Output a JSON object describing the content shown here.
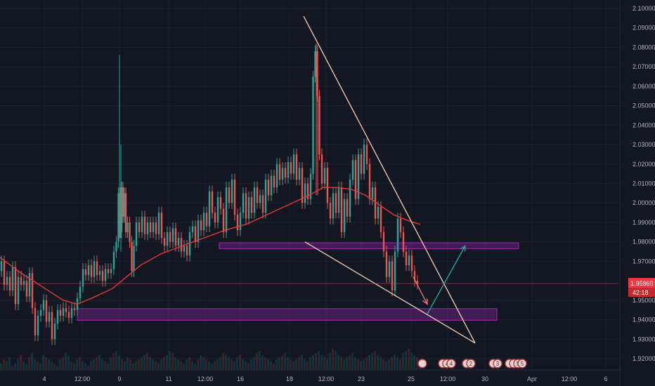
{
  "chart_data": {
    "type": "candlestick",
    "title": "",
    "xlabel": "",
    "ylabel": "",
    "ylim": [
      1.915,
      2.105
    ],
    "grid": true,
    "x_ticks": [
      "4",
      "12:00",
      "9",
      "11",
      "12:00",
      "16",
      "18",
      "12:00",
      "23",
      "25",
      "12:00",
      "30",
      "Apr",
      "12:00",
      "6"
    ],
    "y_ticks": [
      "2.10000",
      "2.09000",
      "2.08000",
      "2.07000",
      "2.06000",
      "2.05000",
      "2.04000",
      "2.03000",
      "2.02000",
      "2.01000",
      "2.00000",
      "1.99000",
      "1.98000",
      "1.97000",
      "1.95000",
      "1.94000",
      "1.93000",
      "1.92000"
    ],
    "last_price": {
      "value": "1.95860",
      "countdown": "42:18"
    },
    "series": [
      {
        "kind": "price",
        "points": [
          [
            0,
            1.965
          ],
          [
            4,
            1.97
          ],
          [
            8,
            1.958
          ],
          [
            12,
            1.962
          ],
          [
            16,
            1.955
          ],
          [
            20,
            1.967
          ],
          [
            24,
            1.948
          ],
          [
            28,
            1.962
          ],
          [
            32,
            1.958
          ],
          [
            36,
            1.96
          ],
          [
            40,
            1.952
          ],
          [
            44,
            1.964
          ],
          [
            48,
            1.946
          ],
          [
            52,
            1.932
          ],
          [
            56,
            1.942
          ],
          [
            60,
            1.945
          ],
          [
            64,
            1.95
          ],
          [
            68,
            1.939
          ],
          [
            72,
            1.944
          ],
          [
            76,
            1.93
          ],
          [
            80,
            1.938
          ],
          [
            84,
            1.945
          ],
          [
            88,
            1.942
          ],
          [
            92,
            1.946
          ],
          [
            96,
            1.944
          ],
          [
            100,
            1.941
          ],
          [
            104,
            1.946
          ],
          [
            108,
            1.945
          ],
          [
            112,
            1.951
          ],
          [
            116,
            1.957
          ],
          [
            120,
            1.966
          ],
          [
            124,
            1.963
          ],
          [
            128,
            1.968
          ],
          [
            132,
            1.962
          ],
          [
            136,
            1.97
          ],
          [
            140,
            1.963
          ],
          [
            144,
            1.965
          ],
          [
            148,
            1.96
          ],
          [
            152,
            1.966
          ],
          [
            156,
            1.964
          ],
          [
            160,
            1.966
          ],
          [
            164,
            1.975
          ],
          [
            167,
            1.98
          ],
          [
            170,
            2.005
          ],
          [
            172,
            1.985
          ],
          [
            174,
            2.008
          ],
          [
            176,
            1.993
          ],
          [
            178,
            2.005
          ],
          [
            180,
            1.985
          ],
          [
            183,
            1.99
          ],
          [
            186,
            1.98
          ],
          [
            189,
            1.965
          ],
          [
            192,
            1.978
          ],
          [
            196,
            1.99
          ],
          [
            200,
            1.985
          ],
          [
            204,
            1.993
          ],
          [
            208,
            1.984
          ],
          [
            212,
            1.99
          ],
          [
            216,
            1.985
          ],
          [
            220,
            1.99
          ],
          [
            224,
            1.984
          ],
          [
            228,
            1.995
          ],
          [
            232,
            1.982
          ],
          [
            236,
            1.978
          ],
          [
            240,
            1.985
          ],
          [
            244,
            1.98
          ],
          [
            248,
            1.987
          ],
          [
            252,
            1.978
          ],
          [
            256,
            1.982
          ],
          [
            260,
            1.975
          ],
          [
            264,
            1.978
          ],
          [
            268,
            1.973
          ],
          [
            272,
            1.985
          ],
          [
            276,
            1.988
          ],
          [
            280,
            1.98
          ],
          [
            284,
            1.991
          ],
          [
            288,
            1.986
          ],
          [
            292,
            1.995
          ],
          [
            296,
            1.988
          ],
          [
            300,
            2.006
          ],
          [
            304,
            1.995
          ],
          [
            308,
            1.99
          ],
          [
            312,
            2.003
          ],
          [
            316,
            1.997
          ],
          [
            320,
            1.985
          ],
          [
            324,
            2.008
          ],
          [
            328,
            2.0
          ],
          [
            332,
            2.012
          ],
          [
            336,
            1.994
          ],
          [
            340,
            1.986
          ],
          [
            344,
            1.995
          ],
          [
            348,
            2.005
          ],
          [
            352,
            1.992
          ],
          [
            356,
            2.003
          ],
          [
            360,
            1.995
          ],
          [
            364,
            2.008
          ],
          [
            368,
            2.0
          ],
          [
            372,
            2.004
          ],
          [
            376,
            1.995
          ],
          [
            380,
            2.012
          ],
          [
            384,
            2.004
          ],
          [
            388,
            2.014
          ],
          [
            392,
            2.008
          ],
          [
            396,
            2.02
          ],
          [
            400,
            2.012
          ],
          [
            404,
            2.018
          ],
          [
            408,
            2.013
          ],
          [
            412,
            2.021
          ],
          [
            416,
            2.015
          ],
          [
            420,
            2.025
          ],
          [
            424,
            2.012
          ],
          [
            428,
            2.018
          ],
          [
            432,
            2.0
          ],
          [
            436,
            2.01
          ],
          [
            440,
            2.002
          ],
          [
            444,
            2.015
          ],
          [
            447,
            2.065
          ],
          [
            450,
            2.078
          ],
          [
            453,
            2.055
          ],
          [
            456,
            2.025
          ],
          [
            460,
            2.01
          ],
          [
            464,
            2.018
          ],
          [
            468,
            2.0
          ],
          [
            472,
            1.992
          ],
          [
            476,
            2.005
          ],
          [
            480,
            1.995
          ],
          [
            484,
            2.008
          ],
          [
            488,
            1.985
          ],
          [
            492,
            2.002
          ],
          [
            496,
            1.993
          ],
          [
            500,
            2.012
          ],
          [
            504,
            2.022
          ],
          [
            508,
            2.002
          ],
          [
            512,
            2.025
          ],
          [
            516,
            2.015
          ],
          [
            520,
            2.03
          ],
          [
            524,
            2.02
          ],
          [
            528,
            2.002
          ],
          [
            532,
            2.008
          ],
          [
            536,
            1.992
          ],
          [
            540,
            1.998
          ],
          [
            544,
            1.985
          ],
          [
            548,
            1.975
          ],
          [
            552,
            1.962
          ],
          [
            556,
            1.97
          ],
          [
            560,
            1.955
          ],
          [
            564,
            1.975
          ],
          [
            568,
            1.992
          ],
          [
            572,
            1.985
          ],
          [
            576,
            1.975
          ],
          [
            580,
            1.968
          ],
          [
            584,
            1.973
          ],
          [
            588,
            1.965
          ],
          [
            592,
            1.96
          ],
          [
            596,
            1.9586
          ]
        ]
      },
      {
        "kind": "moving-average",
        "points": [
          [
            0,
            1.972
          ],
          [
            30,
            1.964
          ],
          [
            60,
            1.957
          ],
          [
            90,
            1.95
          ],
          [
            110,
            1.948
          ],
          [
            130,
            1.951
          ],
          [
            160,
            1.956
          ],
          [
            180,
            1.962
          ],
          [
            200,
            1.968
          ],
          [
            230,
            1.974
          ],
          [
            260,
            1.978
          ],
          [
            290,
            1.982
          ],
          [
            320,
            1.986
          ],
          [
            350,
            1.989
          ],
          [
            380,
            1.994
          ],
          [
            410,
            1.999
          ],
          [
            440,
            2.004
          ],
          [
            460,
            2.008
          ],
          [
            480,
            2.008
          ],
          [
            500,
            2.007
          ],
          [
            520,
            2.004
          ],
          [
            540,
            1.999
          ],
          [
            560,
            1.994
          ],
          [
            580,
            1.991
          ],
          [
            598,
            1.989
          ]
        ]
      }
    ],
    "volume": [
      3,
      5,
      4,
      6,
      2,
      3,
      5,
      7,
      4,
      3,
      6,
      8,
      5,
      4,
      3,
      7,
      6,
      5,
      4,
      3,
      2,
      5,
      6,
      8,
      7,
      4,
      3,
      5,
      6,
      4,
      3,
      2,
      4,
      5,
      6,
      7,
      5,
      4,
      3,
      6,
      8,
      9,
      7,
      5,
      4,
      6,
      5,
      3,
      4,
      5,
      6,
      7,
      8,
      6,
      5,
      4,
      3,
      5,
      6,
      7,
      9,
      8,
      6,
      5,
      4,
      3,
      5,
      6,
      4,
      3,
      5,
      7,
      6,
      5,
      4,
      3,
      4,
      5,
      6,
      8,
      7,
      6,
      5,
      4,
      6,
      7,
      5,
      4,
      3,
      5,
      6,
      8,
      9,
      7,
      6,
      5,
      4,
      3,
      5,
      6,
      7,
      8,
      6,
      5,
      4,
      5,
      6,
      7,
      5,
      4,
      6,
      7,
      8,
      9,
      7,
      6,
      5,
      8,
      10,
      9,
      7,
      6,
      5,
      6,
      7,
      8,
      6,
      5,
      4,
      5,
      6,
      7,
      8,
      9,
      7,
      6,
      5,
      4,
      5,
      6,
      7,
      6,
      5,
      8,
      9,
      10,
      8,
      7,
      6,
      5
    ],
    "zones": [
      {
        "name": "upper-zone",
        "x": [
          312,
          738
        ],
        "y": [
          1.9765,
          1.9795
        ],
        "color": "#9c27b0"
      },
      {
        "name": "lower-zone",
        "x": [
          110,
          707
        ],
        "y": [
          1.9397,
          1.9457
        ],
        "color": "#9c27b0"
      }
    ],
    "trendlines": [
      {
        "name": "wedge-upper",
        "from": [
          432,
          2.096
        ],
        "to": [
          676,
          1.928
        ]
      },
      {
        "name": "wedge-lower",
        "from": [
          434,
          1.98
        ],
        "to": [
          676,
          1.928
        ]
      },
      {
        "name": "last-price-line",
        "from": [
          0,
          1.9586
        ],
        "to": [
          880,
          1.9586
        ]
      }
    ],
    "arrows": [
      {
        "name": "down-arrow",
        "from": [
          588,
          1.962
        ],
        "to": [
          608,
          1.948
        ],
        "color": "#e57373"
      },
      {
        "name": "up-arrow",
        "from": [
          608,
          1.943
        ],
        "to": [
          662,
          1.978
        ],
        "color": "#26a69a"
      }
    ],
    "event_markers": [
      {
        "x": 601,
        "labels": [
          ""
        ]
      },
      {
        "x": 630,
        "labels": [
          "",
          "4",
          "4"
        ]
      },
      {
        "x": 664,
        "labels": [
          "",
          "2"
        ]
      },
      {
        "x": 702,
        "labels": [
          "",
          "3"
        ]
      },
      {
        "x": 725,
        "labels": [
          "",
          "",
          "5",
          "5"
        ]
      }
    ]
  },
  "colors": {
    "background": "#131722",
    "grid": "#1e222d",
    "axis_text": "#b2b5be",
    "up": "#26a69a",
    "down": "#ef5350",
    "ma": "#e53935",
    "trendline": "#f5d0b8",
    "zone_fill": "rgba(156,39,176,0.35)",
    "zone_border": "#9c27b0",
    "price_tag": "#f23645"
  }
}
